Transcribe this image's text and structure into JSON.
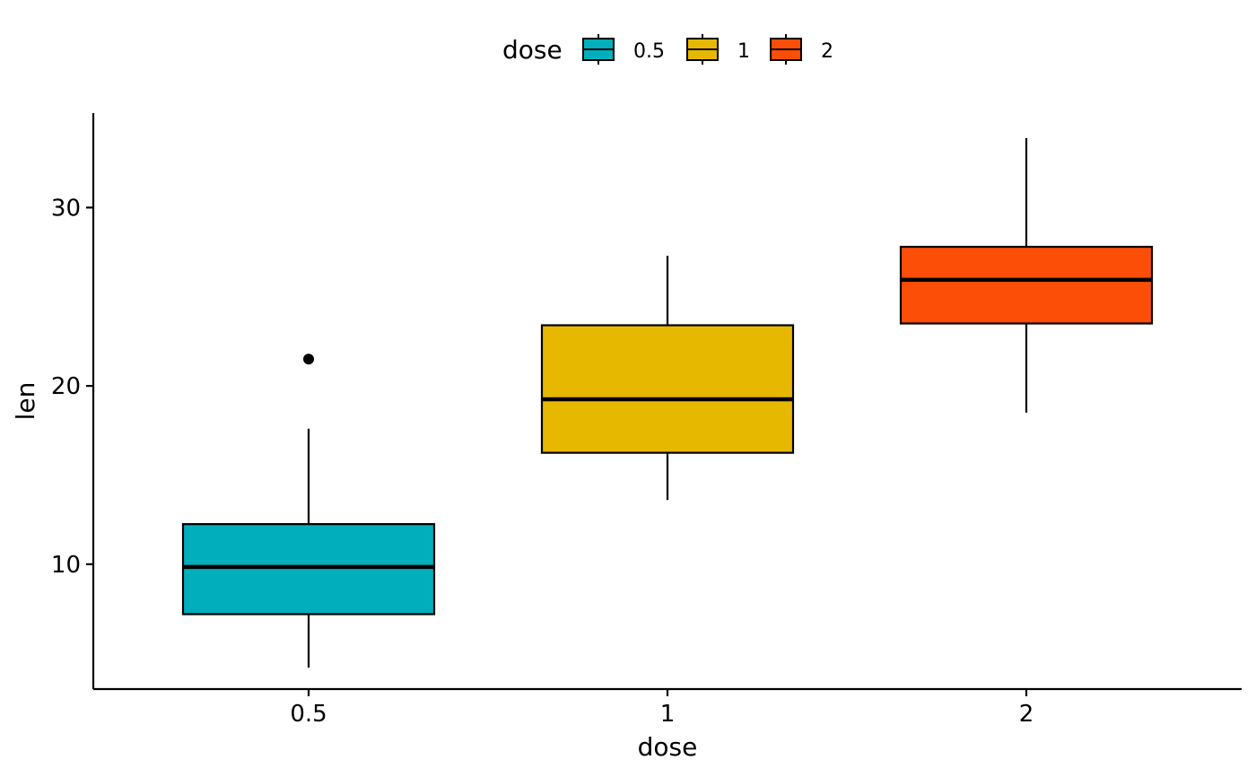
{
  "chart_data": {
    "type": "boxplot",
    "xlabel": "dose",
    "ylabel": "len",
    "categories": [
      "0.5",
      "1",
      "2"
    ],
    "ylim": [
      3.0,
      35.3
    ],
    "y_ticks": [
      10,
      20,
      30
    ],
    "grid": false,
    "legend": {
      "title": "dose",
      "position": "top",
      "entries": [
        "0.5",
        "1",
        "2"
      ]
    },
    "boxes": [
      {
        "category": "0.5",
        "min": 4.2,
        "q1": 7.2,
        "median": 9.85,
        "q3": 12.25,
        "max": 17.6,
        "outliers": [
          21.5
        ],
        "color": "#00AFBB"
      },
      {
        "category": "1",
        "min": 13.6,
        "q1": 16.25,
        "median": 19.25,
        "q3": 23.4,
        "max": 27.3,
        "outliers": [],
        "color": "#E7B800"
      },
      {
        "category": "2",
        "min": 18.5,
        "q1": 23.5,
        "median": 25.95,
        "q3": 27.8,
        "max": 33.9,
        "outliers": [],
        "color": "#FC4E07"
      }
    ]
  }
}
